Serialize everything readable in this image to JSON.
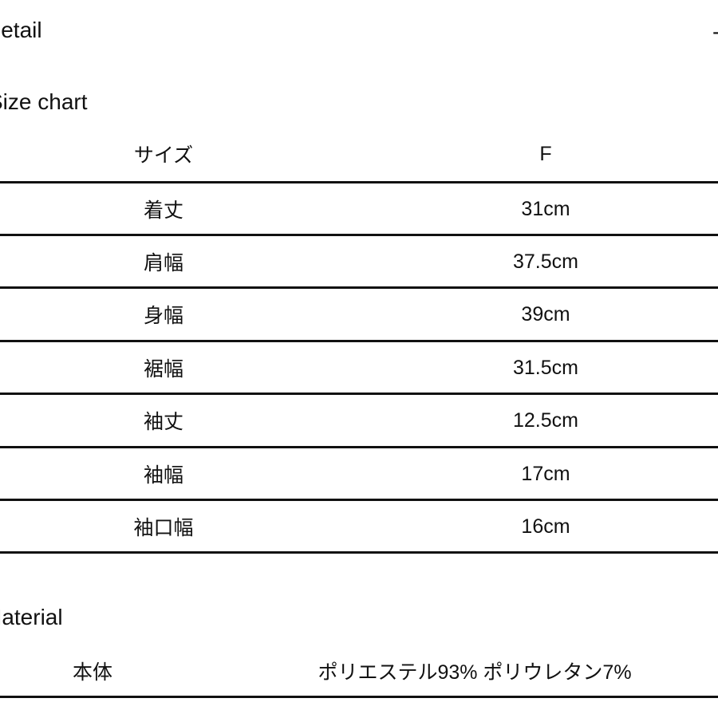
{
  "detail": {
    "title": "Detail",
    "toggle": "-"
  },
  "size_chart": {
    "title": "Size chart",
    "header": {
      "label": "サイズ",
      "value": "F"
    },
    "rows": [
      {
        "label": "着丈",
        "value": "31cm"
      },
      {
        "label": "肩幅",
        "value": "37.5cm"
      },
      {
        "label": "身幅",
        "value": "39cm"
      },
      {
        "label": "裾幅",
        "value": "31.5cm"
      },
      {
        "label": "袖丈",
        "value": "12.5cm"
      },
      {
        "label": "袖幅",
        "value": "17cm"
      },
      {
        "label": "袖口幅",
        "value": "16cm"
      }
    ]
  },
  "material": {
    "title": "Material",
    "rows": [
      {
        "label": "本体",
        "value": "ポリエステル93% ポリウレタン7%"
      }
    ]
  }
}
